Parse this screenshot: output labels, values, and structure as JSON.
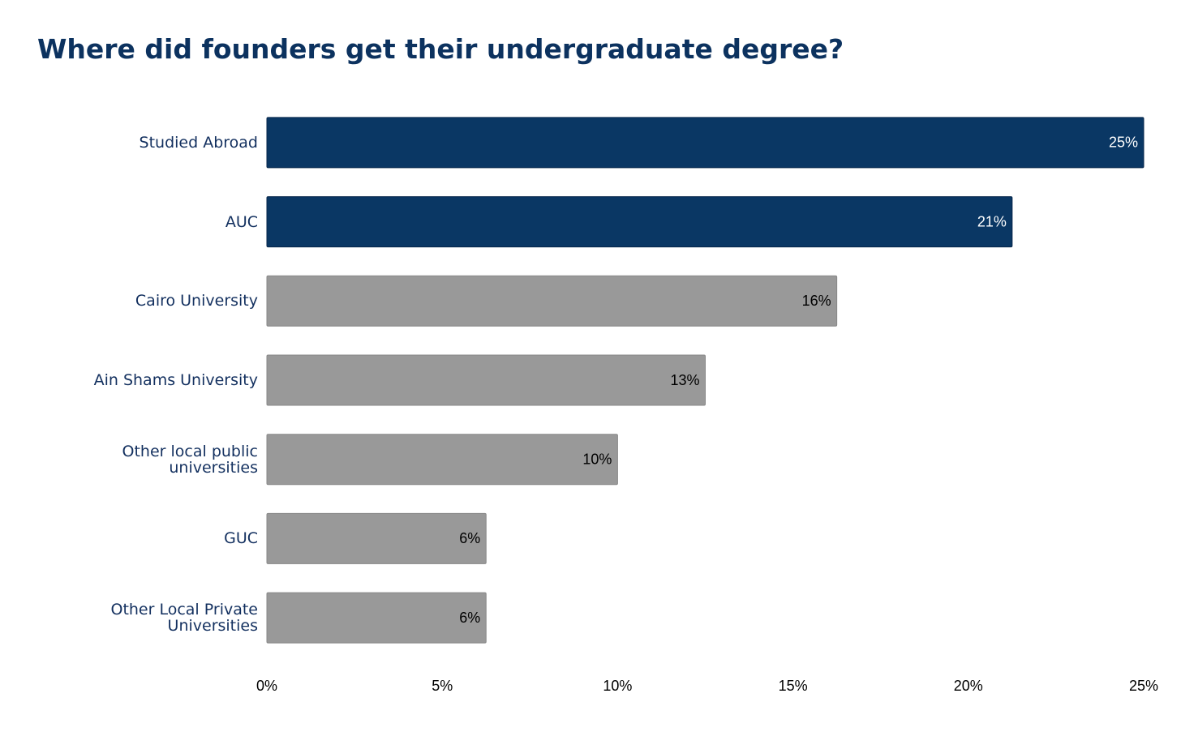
{
  "chart_data": {
    "type": "hbar",
    "title": "Where did founders get their undergraduate degree?",
    "categories": [
      "Studied Abroad",
      "AUC",
      "Cairo University",
      "Ain Shams University",
      "Other local public\nuniversities",
      "GUC",
      "Other Local Private\nUniversities"
    ],
    "values": [
      25,
      21.25,
      16.25,
      12.5,
      10,
      6.25,
      6.25
    ],
    "value_labels": [
      "25%",
      "21%",
      "16%",
      "13%",
      "10%",
      "6%",
      "6%"
    ],
    "colors": [
      "#0a3764",
      "#0a3764",
      "#999999",
      "#999999",
      "#999999",
      "#999999",
      "#999999"
    ],
    "xlim": [
      0,
      25
    ],
    "xticks": [
      {
        "value": 0,
        "label": "0%"
      },
      {
        "value": 5,
        "label": "5%"
      },
      {
        "value": 10,
        "label": "10%"
      },
      {
        "value": 15,
        "label": "15%"
      },
      {
        "value": 20,
        "label": "20%"
      },
      {
        "value": 25,
        "label": "25%"
      }
    ],
    "grid": false
  }
}
